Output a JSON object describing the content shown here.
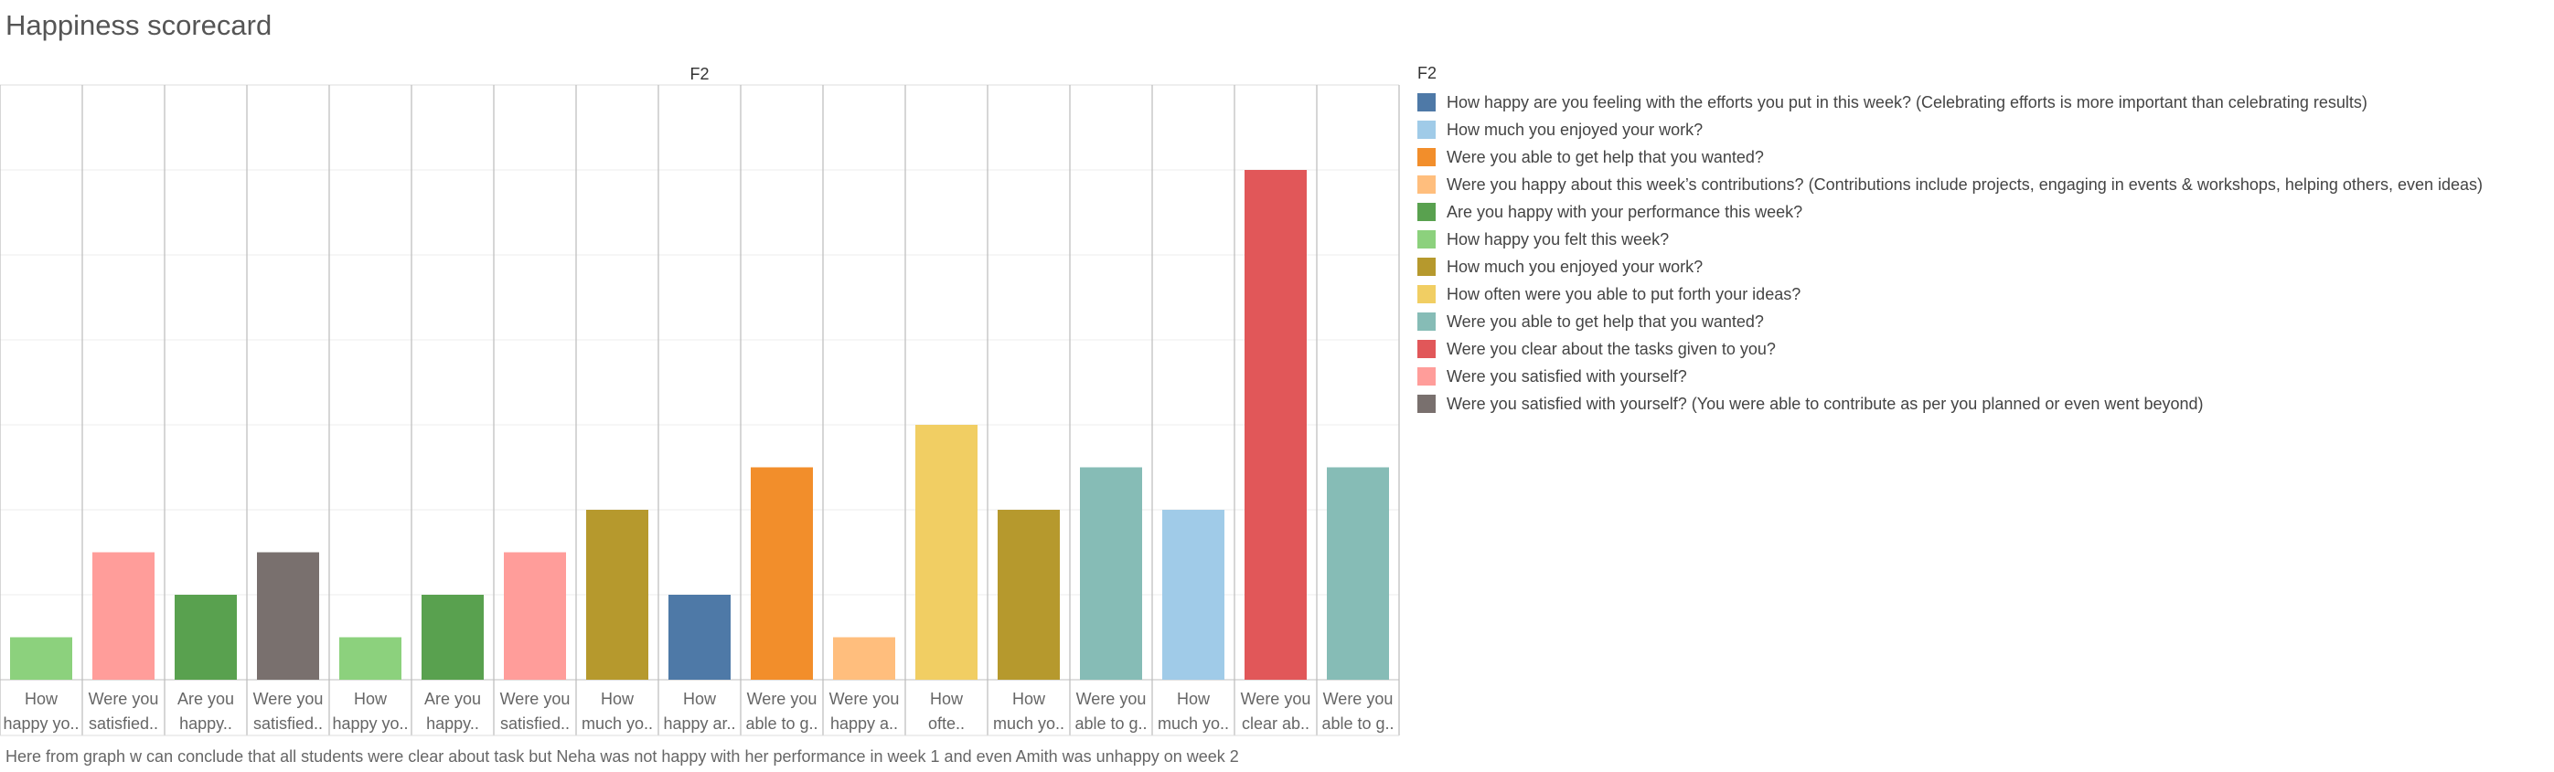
{
  "page": {
    "title": "Happiness scorecard",
    "footer": "Here from graph w can conclude that all students were clear about task but Neha was not happy with her performance in week 1 and even Amith was unhappy on week 2"
  },
  "legend": {
    "title": "F2",
    "items": [
      {
        "label": "How happy are you feeling with the efforts you put in this week? (Celebrating efforts is more important than celebrating results)",
        "color": "#4e79a7"
      },
      {
        "label": "How much you enjoyed your work?",
        "color": "#a0cbe8"
      },
      {
        "label": "Were you able to get help that you wanted?",
        "color": "#f28e2b"
      },
      {
        "label": "Were you happy about this week’s contributions? (Contributions include projects, engaging in events & workshops, helping others, even ideas)",
        "color": "#ffbe7d"
      },
      {
        "label": "Are you happy with your performance this week?",
        "color": "#59a14f"
      },
      {
        "label": "How happy you felt this week?",
        "color": "#8cd17d"
      },
      {
        "label": "How much you enjoyed your work?",
        "color": "#b6992d"
      },
      {
        "label": "How often were you able to put forth your ideas?",
        "color": "#f1ce63"
      },
      {
        "label": "Were you able to get help that you wanted?",
        "color": "#86bcb6"
      },
      {
        "label": "Were you clear about the tasks given to you?",
        "color": "#e15759"
      },
      {
        "label": "Were you satisfied with yourself?",
        "color": "#ff9d9a"
      },
      {
        "label": "Were you satisfied with yourself? (You were able to contribute as per you planned or even went beyond)",
        "color": "#79706e"
      }
    ]
  },
  "chart_data": {
    "type": "bar",
    "title": "F2",
    "grid": true,
    "ylim": [
      0,
      14
    ],
    "categories": [
      [
        "How",
        "happy yo.."
      ],
      [
        "Were you",
        "satisfied.."
      ],
      [
        "Are you",
        "happy.."
      ],
      [
        "Were you",
        "satisfied.."
      ],
      [
        "How",
        "happy yo.."
      ],
      [
        "Are you",
        "happy.."
      ],
      [
        "Were you",
        "satisfied.."
      ],
      [
        "How",
        "much yo.."
      ],
      [
        "How",
        "happy ar.."
      ],
      [
        "Were you",
        "able to g.."
      ],
      [
        "Were you",
        "happy a.."
      ],
      [
        "How",
        "ofte.."
      ],
      [
        "How",
        "much yo.."
      ],
      [
        "Were you",
        "able to g.."
      ],
      [
        "How",
        "much yo.."
      ],
      [
        "Were you",
        "clear ab.."
      ],
      [
        "Were you",
        "able to g.."
      ]
    ],
    "values": [
      1,
      3,
      2,
      3,
      1,
      2,
      3,
      4,
      2,
      5,
      1,
      6,
      4,
      5,
      4,
      12,
      5
    ],
    "colors": [
      "#8cd17d",
      "#ff9d9a",
      "#59a14f",
      "#79706e",
      "#8cd17d",
      "#59a14f",
      "#ff9d9a",
      "#b6992d",
      "#4e79a7",
      "#f28e2b",
      "#ffbe7d",
      "#f1ce63",
      "#b6992d",
      "#86bcb6",
      "#a0cbe8",
      "#e15759",
      "#86bcb6"
    ]
  }
}
